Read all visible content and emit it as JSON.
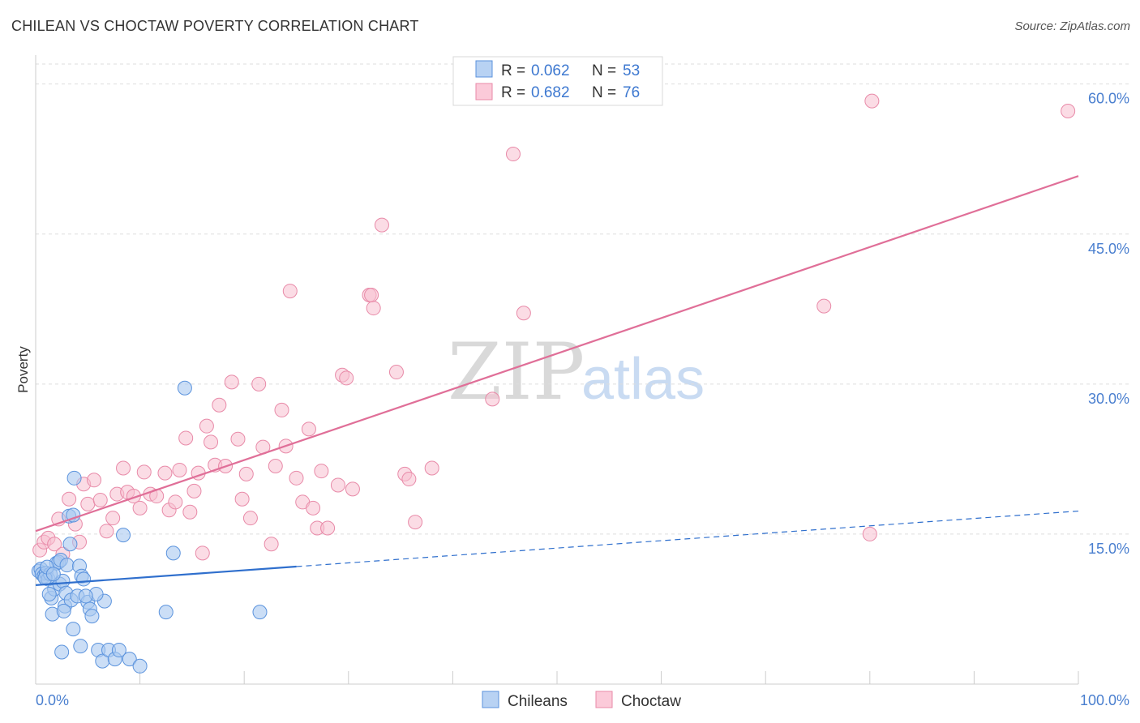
{
  "header": {
    "title": "CHILEAN VS CHOCTAW POVERTY CORRELATION CHART",
    "source": "Source: ZipAtlas.com"
  },
  "watermark": {
    "zip": "ZIP",
    "atlas": "atlas"
  },
  "colors": {
    "chileans_fill": "#a9c8f0",
    "chileans_stroke": "#5b93dd",
    "chileans_line": "#2f6fcd",
    "choctaw_fill": "#f7bfd0",
    "choctaw_stroke": "#e88aa8",
    "choctaw_line": "#e06f98",
    "grid": "#dddddd",
    "tick_text": "#4a7fcf"
  },
  "legend": {
    "rows": [
      {
        "r_label": "R =",
        "r_value": "0.062",
        "n_label": "N =",
        "n_value": "53"
      },
      {
        "r_label": "R =",
        "r_value": "0.682",
        "n_label": "N =",
        "n_value": "76"
      }
    ]
  },
  "bottom_legend": [
    {
      "label": "Chileans"
    },
    {
      "label": "Choctaw"
    }
  ],
  "chart_data": {
    "type": "scatter",
    "title": "CHILEAN VS CHOCTAW POVERTY CORRELATION CHART",
    "xlabel": "",
    "ylabel": "Poverty",
    "xlim": [
      0,
      100
    ],
    "ylim": [
      0,
      62
    ],
    "x_tick_labels": [
      "0.0%",
      "100.0%"
    ],
    "y_ticks": [
      15,
      30,
      45,
      60
    ],
    "y_tick_labels": [
      "15.0%",
      "30.0%",
      "45.0%",
      "60.0%"
    ],
    "grid": true,
    "legend_position": "top-center",
    "series": [
      {
        "name": "Chileans",
        "r": 0.062,
        "n": 53,
        "trend": {
          "x0": 0,
          "y0": 9.9,
          "x1": 100,
          "y1": 17.3,
          "solid_until": 25
        },
        "points": [
          [
            0.3,
            11.3
          ],
          [
            0.5,
            11.5
          ],
          [
            0.6,
            11.0
          ],
          [
            0.8,
            10.8
          ],
          [
            1.0,
            11.1
          ],
          [
            1.2,
            10.5
          ],
          [
            1.4,
            11.0
          ],
          [
            1.5,
            8.6
          ],
          [
            1.6,
            7.0
          ],
          [
            1.8,
            9.5
          ],
          [
            2.0,
            12.1
          ],
          [
            2.2,
            12.2
          ],
          [
            2.3,
            10.0
          ],
          [
            2.4,
            12.4
          ],
          [
            2.6,
            10.3
          ],
          [
            2.8,
            7.8
          ],
          [
            2.9,
            9.1
          ],
          [
            3.0,
            11.9
          ],
          [
            3.2,
            16.8
          ],
          [
            3.4,
            8.4
          ],
          [
            3.6,
            16.9
          ],
          [
            3.6,
            5.5
          ],
          [
            3.7,
            20.6
          ],
          [
            4.0,
            8.8
          ],
          [
            4.2,
            11.8
          ],
          [
            4.4,
            10.8
          ],
          [
            4.6,
            10.5
          ],
          [
            5.0,
            8.2
          ],
          [
            5.2,
            7.5
          ],
          [
            5.4,
            6.8
          ],
          [
            6.0,
            3.4
          ],
          [
            6.4,
            2.3
          ],
          [
            6.6,
            8.3
          ],
          [
            7.0,
            3.4
          ],
          [
            7.6,
            2.5
          ],
          [
            8.0,
            3.4
          ],
          [
            8.4,
            14.9
          ],
          [
            9.0,
            2.5
          ],
          [
            10.0,
            1.8
          ],
          [
            12.5,
            7.2
          ],
          [
            13.2,
            13.1
          ],
          [
            14.3,
            29.6
          ],
          [
            21.5,
            7.2
          ],
          [
            0.9,
            10.6
          ],
          [
            1.3,
            9.0
          ],
          [
            2.7,
            7.3
          ],
          [
            3.3,
            14.0
          ],
          [
            4.3,
            3.8
          ],
          [
            5.8,
            9.0
          ],
          [
            1.1,
            11.7
          ],
          [
            2.5,
            3.2
          ],
          [
            1.7,
            11.0
          ],
          [
            4.8,
            8.8
          ]
        ]
      },
      {
        "name": "Choctaw",
        "r": 0.682,
        "n": 76,
        "trend": {
          "x0": 0,
          "y0": 15.3,
          "x1": 100,
          "y1": 50.8
        },
        "points": [
          [
            0.4,
            13.4
          ],
          [
            0.8,
            14.2
          ],
          [
            1.2,
            14.6
          ],
          [
            1.8,
            14.0
          ],
          [
            2.2,
            16.5
          ],
          [
            2.6,
            13.0
          ],
          [
            3.2,
            18.5
          ],
          [
            3.8,
            16.0
          ],
          [
            4.2,
            14.2
          ],
          [
            4.6,
            20.0
          ],
          [
            5.0,
            18.0
          ],
          [
            5.6,
            20.4
          ],
          [
            6.2,
            18.4
          ],
          [
            6.8,
            15.3
          ],
          [
            7.4,
            16.6
          ],
          [
            7.8,
            19.0
          ],
          [
            8.4,
            21.6
          ],
          [
            8.8,
            19.2
          ],
          [
            9.4,
            18.8
          ],
          [
            10.0,
            17.6
          ],
          [
            10.4,
            21.2
          ],
          [
            11.0,
            19.0
          ],
          [
            11.6,
            18.8
          ],
          [
            12.4,
            21.1
          ],
          [
            12.8,
            17.4
          ],
          [
            13.4,
            18.2
          ],
          [
            13.8,
            21.4
          ],
          [
            14.4,
            24.6
          ],
          [
            14.8,
            17.2
          ],
          [
            15.2,
            19.3
          ],
          [
            15.6,
            21.1
          ],
          [
            16.0,
            13.1
          ],
          [
            16.4,
            25.8
          ],
          [
            16.8,
            24.2
          ],
          [
            17.2,
            21.9
          ],
          [
            17.6,
            27.9
          ],
          [
            18.2,
            21.8
          ],
          [
            18.8,
            30.2
          ],
          [
            19.4,
            24.5
          ],
          [
            19.8,
            18.5
          ],
          [
            20.2,
            21.0
          ],
          [
            20.6,
            16.6
          ],
          [
            21.4,
            30.0
          ],
          [
            21.8,
            23.7
          ],
          [
            22.6,
            14.0
          ],
          [
            23.0,
            21.8
          ],
          [
            23.6,
            27.4
          ],
          [
            24.0,
            23.8
          ],
          [
            24.4,
            39.3
          ],
          [
            25.0,
            20.6
          ],
          [
            25.6,
            18.2
          ],
          [
            26.2,
            25.5
          ],
          [
            26.6,
            17.6
          ],
          [
            27.0,
            15.6
          ],
          [
            27.4,
            21.3
          ],
          [
            28.0,
            15.6
          ],
          [
            29.0,
            19.9
          ],
          [
            29.4,
            30.9
          ],
          [
            29.8,
            30.6
          ],
          [
            30.4,
            19.5
          ],
          [
            32.0,
            38.9
          ],
          [
            32.4,
            37.6
          ],
          [
            33.2,
            45.9
          ],
          [
            34.6,
            31.2
          ],
          [
            35.4,
            21.0
          ],
          [
            35.8,
            20.5
          ],
          [
            36.4,
            16.2
          ],
          [
            38.0,
            21.6
          ],
          [
            43.8,
            28.5
          ],
          [
            45.8,
            53.0
          ],
          [
            46.8,
            37.1
          ],
          [
            75.6,
            37.8
          ],
          [
            80.2,
            58.3
          ],
          [
            99.0,
            57.3
          ],
          [
            80.0,
            15.0
          ],
          [
            32.2,
            38.9
          ]
        ]
      }
    ]
  }
}
